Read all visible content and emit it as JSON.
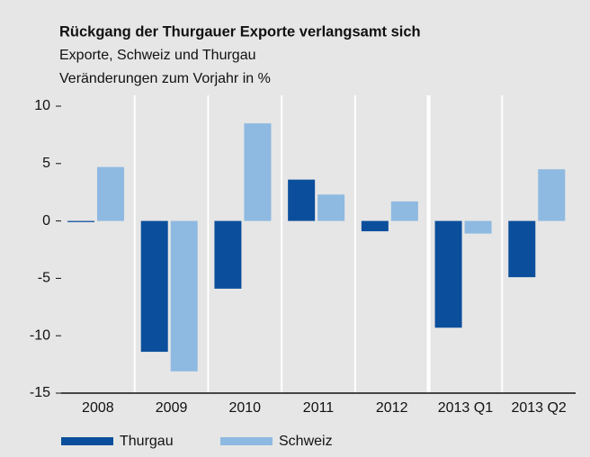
{
  "chart_data": {
    "type": "bar",
    "title": "Rückgang der Thurgauer Exporte verlangsamt sich",
    "subtitle": "Exporte, Schweiz und Thurgau",
    "y_label": "Veränderungen zum Vorjahr in %",
    "categories": [
      "2008",
      "2009",
      "2010",
      "2011",
      "2012",
      "2013 Q1",
      "2013 Q2"
    ],
    "series": [
      {
        "name": "Thurgau",
        "color": "#0b4f9c",
        "values": [
          -0.1,
          -11.4,
          -5.9,
          3.6,
          -0.9,
          -9.3,
          -4.9
        ]
      },
      {
        "name": "Schweiz",
        "color": "#8eb9e1",
        "values": [
          4.7,
          -13.1,
          8.5,
          2.3,
          1.7,
          -1.1,
          4.5
        ]
      }
    ],
    "ylim": [
      -15,
      10
    ],
    "yticks": [
      -15,
      -10,
      -5,
      0,
      5,
      10
    ],
    "legend": "bottom"
  }
}
